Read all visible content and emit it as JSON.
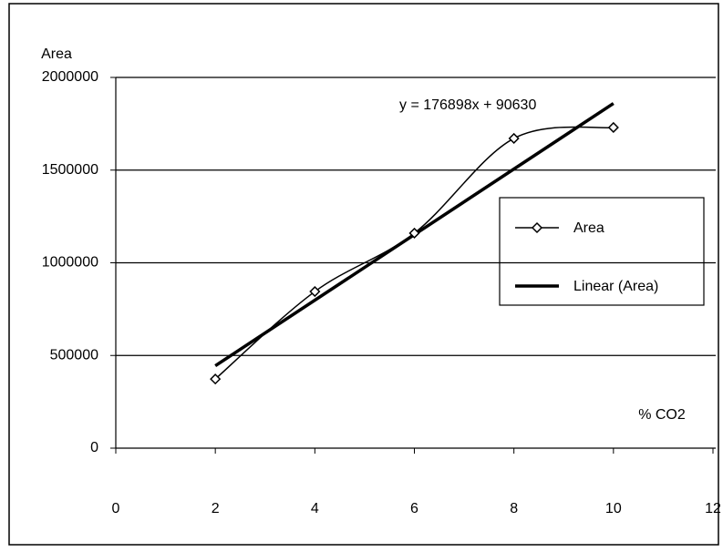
{
  "chart_data": {
    "type": "scatter",
    "y_label": "Area",
    "x_label": "% CO2",
    "series": [
      {
        "name": "Area",
        "color": "#000000",
        "x": [
          2,
          4,
          6,
          8,
          10
        ],
        "values": [
          373000,
          845000,
          1160000,
          1671000,
          1730000
        ]
      }
    ],
    "trendline": {
      "name": "Linear (Area)",
      "slope": 176898,
      "intercept": 90630,
      "label": "y = 176898x + 90630"
    },
    "xlim": [
      0,
      12
    ],
    "xticks": [
      0,
      2,
      4,
      6,
      8,
      10,
      12
    ],
    "ylim": [
      0,
      2000000
    ],
    "yticks": [
      0,
      500000,
      1000000,
      1500000,
      2000000
    ],
    "grid": true,
    "legend": "right"
  }
}
